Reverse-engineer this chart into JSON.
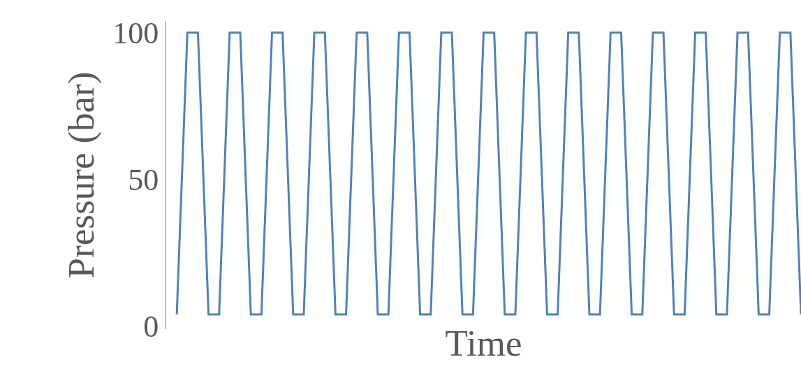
{
  "chart_data": {
    "type": "line",
    "xlabel": "Time",
    "ylabel": "Pressure (bar)",
    "categories": [
      null,
      null,
      null,
      null,
      null,
      null,
      null,
      null,
      null,
      null,
      null,
      null,
      null,
      null,
      null,
      null,
      null,
      null,
      null,
      null,
      null,
      null,
      null,
      null,
      null,
      null,
      null,
      null,
      null,
      null,
      null,
      null,
      null,
      null,
      null,
      null,
      null,
      null,
      null,
      null,
      null,
      null,
      null,
      null,
      null,
      null,
      null,
      null,
      null,
      null,
      null,
      null,
      null,
      null,
      null,
      null,
      null,
      null,
      null,
      null
    ],
    "series": [
      {
        "color": "#4f81bd",
        "values": [
          4,
          100,
          100,
          4,
          4,
          100,
          100,
          4,
          4,
          100,
          100,
          4,
          4,
          100,
          100,
          4,
          4,
          100,
          100,
          4,
          4,
          100,
          100,
          4,
          4,
          100,
          100,
          4,
          4,
          100,
          100,
          4,
          4,
          100,
          100,
          4,
          4,
          100,
          100,
          4,
          4,
          100,
          100,
          4,
          4,
          100,
          100,
          4,
          4,
          100,
          100,
          4,
          4,
          100,
          100,
          4,
          4,
          100,
          100,
          4
        ]
      }
    ],
    "ylim": [
      -1,
      104
    ],
    "yticks": [
      0,
      50,
      100
    ],
    "marker": "none",
    "line_style": "solid",
    "tick_labels": "y"
  }
}
